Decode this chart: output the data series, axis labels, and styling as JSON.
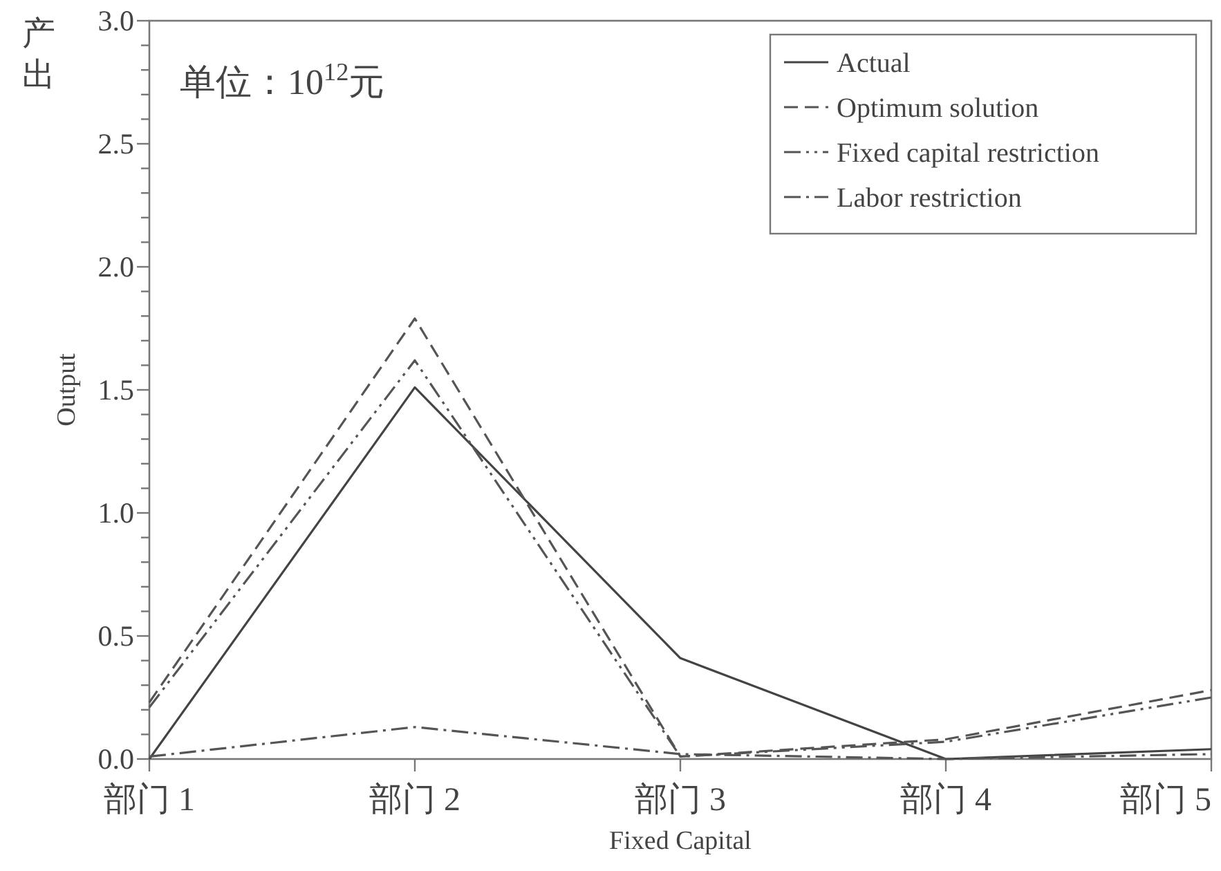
{
  "chart_data": {
    "type": "line",
    "xlabel": "Fixed Capital",
    "ylabel": "Output",
    "annotations": [
      "产出",
      "单位：10$^{12}$元"
    ],
    "categories": [
      "部门 1",
      "部门 2",
      "部门 3",
      "部门 4",
      "部门 5"
    ],
    "ylim": [
      0,
      3
    ],
    "yticks": [
      {
        "value": 0,
        "label": "0.0"
      },
      {
        "value": 0.1,
        "label": null
      },
      {
        "value": 0.2,
        "label": null
      },
      {
        "value": 0.3,
        "label": null
      },
      {
        "value": 0.4,
        "label": null
      },
      {
        "value": 0.5,
        "label": "0.5"
      },
      {
        "value": 0.6,
        "label": null
      },
      {
        "value": 0.7,
        "label": null
      },
      {
        "value": 0.8,
        "label": null
      },
      {
        "value": 0.9,
        "label": null
      },
      {
        "value": 1,
        "label": "1.0"
      },
      {
        "value": 1.1,
        "label": null
      },
      {
        "value": 1.2,
        "label": null
      },
      {
        "value": 1.3,
        "label": null
      },
      {
        "value": 1.4,
        "label": null
      },
      {
        "value": 1.5,
        "label": "1.5"
      },
      {
        "value": 1.6,
        "label": null
      },
      {
        "value": 1.7,
        "label": null
      },
      {
        "value": 1.8,
        "label": null
      },
      {
        "value": 1.9,
        "label": null
      },
      {
        "value": 2,
        "label": "2.0"
      },
      {
        "value": 2.1,
        "label": null
      },
      {
        "value": 2.2,
        "label": null
      },
      {
        "value": 2.3,
        "label": null
      },
      {
        "value": 2.4,
        "label": null
      },
      {
        "value": 2.5,
        "label": "2.5"
      },
      {
        "value": 2.6,
        "label": null
      },
      {
        "value": 2.7,
        "label": null
      },
      {
        "value": 2.8,
        "label": null
      },
      {
        "value": 2.9,
        "label": null
      },
      {
        "value": 3,
        "label": "3.0"
      }
    ],
    "legend": "top right",
    "grid": false,
    "marker": "none",
    "series": [
      {
        "name": "Actual",
        "color": "#444444",
        "line_style": "solid",
        "values": [
          0,
          1.51,
          0.41,
          0,
          0.04
        ]
      },
      {
        "name": "Optimum solution",
        "color": "#555555",
        "line_style": "dashed",
        "values": [
          0.23,
          1.79,
          0.01,
          0.08,
          0.28
        ]
      },
      {
        "name": "Fixed capital restriction",
        "color": "#555555",
        "line_style": "dashdotdot",
        "values": [
          0.21,
          1.62,
          0.01,
          0.07,
          0.25
        ]
      },
      {
        "name": "Labor restriction",
        "color": "#555555",
        "line_style": "dashdot",
        "values": [
          0.01,
          0.13,
          0.02,
          0,
          0.02
        ]
      }
    ]
  }
}
